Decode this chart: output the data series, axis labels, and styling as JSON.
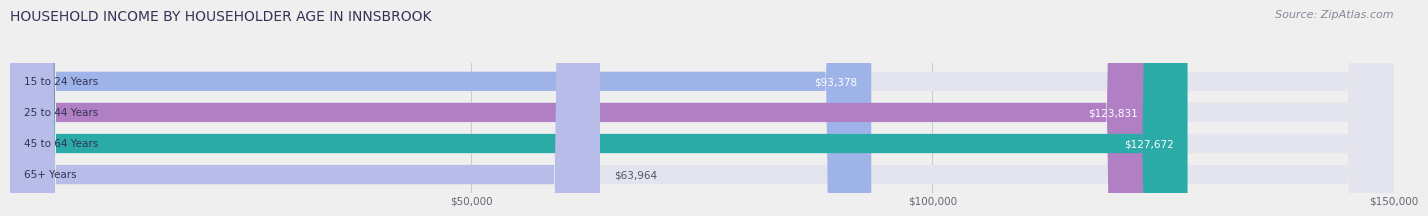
{
  "title": "HOUSEHOLD INCOME BY HOUSEHOLDER AGE IN INNSBROOK",
  "source": "Source: ZipAtlas.com",
  "categories": [
    "15 to 24 Years",
    "25 to 44 Years",
    "45 to 64 Years",
    "65+ Years"
  ],
  "values": [
    93378,
    123831,
    127672,
    63964
  ],
  "bar_colors": [
    "#9eb4e8",
    "#b07fc4",
    "#2aaba8",
    "#b8bce8"
  ],
  "bar_bg_color": "#e4e4ee",
  "xlim": [
    0,
    150000
  ],
  "xticks": [
    50000,
    100000,
    150000
  ],
  "xtick_labels": [
    "$50,000",
    "$100,000",
    "$150,000"
  ],
  "value_labels": [
    "$93,378",
    "$123,831",
    "$127,672",
    "$63,964"
  ],
  "value_inside": [
    true,
    true,
    true,
    false
  ],
  "title_fontsize": 10,
  "source_fontsize": 8,
  "bar_height": 0.62,
  "background_color": "#efefef"
}
